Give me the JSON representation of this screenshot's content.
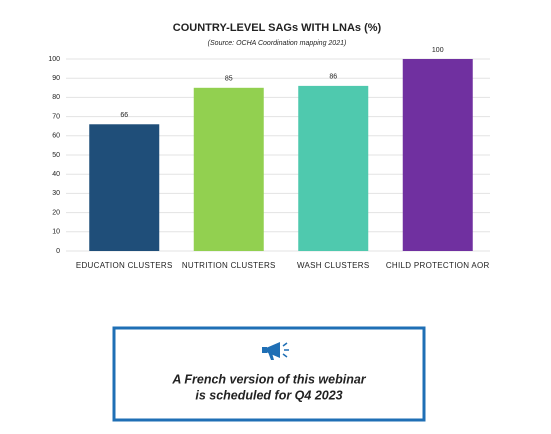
{
  "chart_data": {
    "type": "bar",
    "title": "COUNTRY-LEVEL SAGs WITH LNAs (%)",
    "subtitle": "(Source: OCHA Coordination mapping 2021)",
    "categories": [
      "EDUCATION CLUSTERS",
      "NUTRITION CLUSTERS",
      "WASH CLUSTERS",
      "CHILD PROTECTION AOR"
    ],
    "values": [
      66,
      85,
      86,
      100
    ],
    "colors": [
      "#1f4e79",
      "#92d050",
      "#4fc9ae",
      "#7030a0"
    ],
    "ylim": [
      0,
      100
    ],
    "yticks": [
      0,
      10,
      20,
      30,
      40,
      50,
      60,
      70,
      80,
      90,
      100
    ],
    "grid": true
  },
  "notice": {
    "lines": [
      "A French version of this webinar",
      "is scheduled for Q4 2023"
    ]
  }
}
